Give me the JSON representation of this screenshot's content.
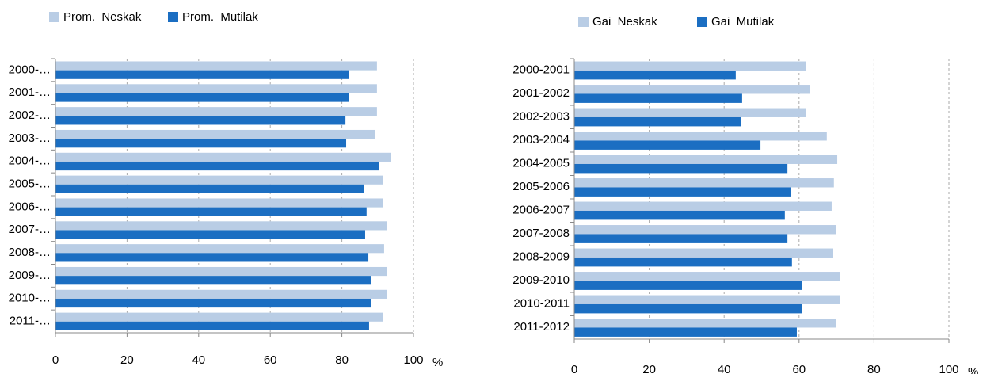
{
  "chart_data": [
    {
      "type": "barh",
      "legend": "top",
      "grid": true,
      "x_label": "%",
      "categories": [
        "2000-…",
        "2001-…",
        "2002-…",
        "2003-…",
        "2004-…",
        "2005-…",
        "2006-…",
        "2007-…",
        "2008-…",
        "2009-…",
        "2010-…",
        "2011-…"
      ],
      "series": [
        {
          "name": "Prom.  Neskak",
          "color": "#b9cde5",
          "values": [
            89.8,
            89.8,
            89.8,
            89.2,
            93.8,
            91.4,
            91.4,
            92.5,
            91.8,
            92.7,
            92.5,
            91.4
          ]
        },
        {
          "name": "Prom.  Mutilak",
          "color": "#1b6ec2",
          "values": [
            81.9,
            81.9,
            81.0,
            81.2,
            90.3,
            86.1,
            86.9,
            86.5,
            87.4,
            88.1,
            88.1,
            87.6
          ]
        }
      ],
      "xlim": [
        0,
        100
      ],
      "xticks": [
        0,
        20,
        40,
        60,
        80,
        100
      ]
    },
    {
      "type": "barh",
      "legend": "top",
      "grid": true,
      "x_label": "%",
      "categories": [
        "2000-2001",
        "2001-2002",
        "2002-2003",
        "2003-2004",
        "2004-2005",
        "2005-2006",
        "2006-2007",
        "2007-2008",
        "2008-2009",
        "2009-2010",
        "2010-2011",
        "2011-2012"
      ],
      "series": [
        {
          "name": "Gai  Neskak",
          "color": "#b9cde5",
          "values": [
            61.9,
            63.0,
            61.9,
            67.4,
            70.2,
            69.3,
            68.7,
            69.8,
            69.1,
            71.0,
            71.0,
            69.8
          ]
        },
        {
          "name": "Gai  Mutilak",
          "color": "#1b6ec2",
          "values": [
            43.1,
            44.8,
            44.6,
            49.7,
            56.9,
            57.9,
            56.2,
            56.9,
            58.1,
            60.7,
            60.7,
            59.4
          ]
        }
      ],
      "xlim": [
        0,
        100
      ],
      "xticks": [
        0,
        20,
        40,
        60,
        80,
        100
      ]
    }
  ]
}
